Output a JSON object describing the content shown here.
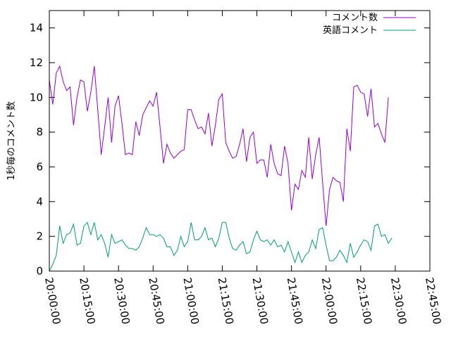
{
  "chart_data": {
    "type": "line",
    "title": "",
    "xlabel": "",
    "ylabel": "1秒毎のコメント数",
    "xlim": [
      "20:00:00",
      "22:45:00"
    ],
    "ylim": [
      0,
      15
    ],
    "yticks": [
      0,
      2,
      4,
      6,
      8,
      10,
      12,
      14
    ],
    "xticks": [
      "20:00:00",
      "20:15:00",
      "20:30:00",
      "20:45:00",
      "21:00:00",
      "21:15:00",
      "21:30:00",
      "21:45:00",
      "22:00:00",
      "22:15:00",
      "22:30:00",
      "22:45:00"
    ],
    "grid": false,
    "legend": "top-right",
    "x_step_seconds": 90,
    "series": [
      {
        "name": "コメント数",
        "color": "#9400d3",
        "values": [
          11.0,
          9.6,
          11.4,
          11.8,
          10.9,
          10.4,
          10.6,
          8.4,
          10.0,
          11.0,
          10.9,
          9.2,
          10.3,
          11.8,
          9.3,
          6.7,
          8.3,
          10.0,
          7.4,
          9.5,
          10.1,
          8.5,
          6.7,
          6.8,
          6.7,
          8.6,
          7.8,
          9.0,
          9.4,
          9.8,
          9.5,
          10.3,
          8.3,
          6.2,
          7.3,
          6.8,
          6.5,
          6.7,
          6.9,
          7.0,
          9.3,
          9.3,
          8.7,
          8.2,
          8.3,
          7.9,
          9.1,
          7.2,
          8.4,
          9.9,
          10.2,
          7.4,
          6.9,
          6.5,
          6.6,
          7.3,
          8.2,
          6.3,
          7.7,
          8.0,
          6.2,
          6.4,
          6.4,
          5.4,
          7.3,
          6.2,
          5.6,
          5.5,
          7.2,
          6.2,
          3.5,
          5.0,
          4.7,
          5.8,
          5.4,
          7.7,
          5.3,
          6.7,
          7.7,
          5.1,
          2.6,
          4.7,
          5.4,
          5.2,
          5.1,
          4.0,
          8.2,
          6.9,
          10.6,
          10.7,
          10.3,
          10.2,
          8.9,
          10.5,
          8.3,
          8.5,
          7.9,
          7.4,
          10.0
        ]
      },
      {
        "name": "英語コメント",
        "color": "#009e73",
        "values": [
          0.0,
          0.4,
          0.9,
          2.6,
          1.6,
          2.1,
          2.2,
          2.7,
          1.5,
          1.6,
          2.6,
          2.8,
          2.1,
          2.8,
          1.8,
          2.1,
          1.6,
          0.8,
          2.1,
          1.6,
          1.7,
          1.8,
          1.5,
          1.3,
          1.3,
          1.2,
          1.4,
          1.9,
          2.5,
          2.1,
          2.1,
          2.0,
          2.1,
          1.9,
          1.4,
          1.4,
          0.9,
          1.2,
          2.0,
          1.4,
          1.7,
          2.8,
          1.8,
          1.8,
          2.0,
          2.5,
          1.8,
          1.9,
          1.4,
          1.9,
          2.8,
          2.8,
          1.9,
          1.3,
          1.2,
          1.5,
          1.7,
          1.0,
          1.1,
          1.8,
          2.3,
          1.8,
          1.7,
          1.8,
          1.5,
          1.8,
          1.4,
          1.5,
          1.1,
          1.7,
          1.1,
          0.5,
          1.1,
          0.5,
          0.9,
          1.1,
          1.8,
          1.3,
          2.4,
          2.5,
          1.5,
          0.6,
          0.6,
          0.8,
          1.2,
          0.9,
          0.5,
          1.6,
          0.8,
          1.1,
          1.5,
          1.8,
          1.7,
          1.2,
          2.6,
          2.7,
          2.0,
          2.1,
          1.6,
          1.9
        ]
      }
    ]
  }
}
